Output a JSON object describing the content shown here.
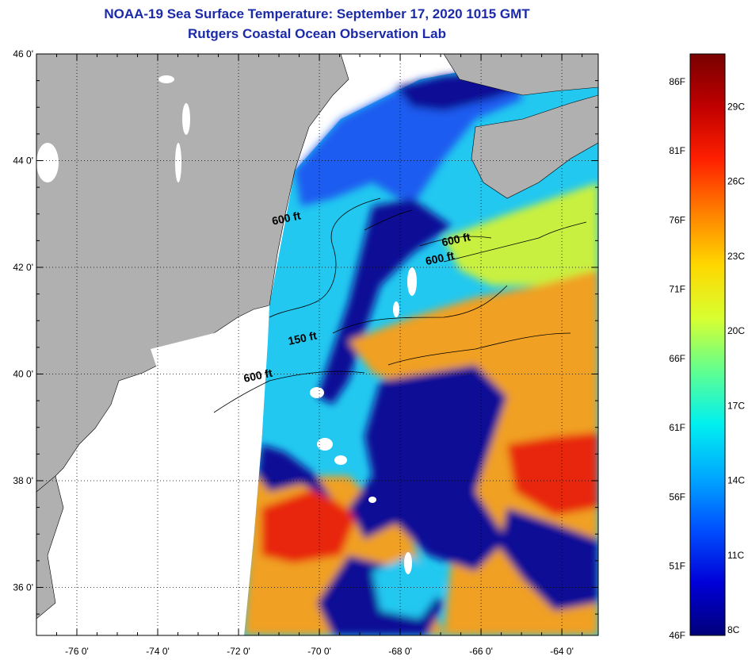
{
  "title": {
    "line1": "NOAA-19 Sea Surface Temperature:  September 17, 2020 1015 GMT",
    "line2": "Rutgers Coastal Ocean Observation Lab"
  },
  "map": {
    "lat_ticks": [
      {
        "value": 46,
        "label": "46 0'"
      },
      {
        "value": 44,
        "label": "44 0'"
      },
      {
        "value": 42,
        "label": "42 0'"
      },
      {
        "value": 40,
        "label": "40 0'"
      },
      {
        "value": 38,
        "label": "38 0'"
      },
      {
        "value": 36,
        "label": "36 0'"
      }
    ],
    "lon_ticks": [
      {
        "value": -76,
        "label": "-76 0'"
      },
      {
        "value": -74,
        "label": "-74 0'"
      },
      {
        "value": -72,
        "label": "-72 0'"
      },
      {
        "value": -70,
        "label": "-70 0'"
      },
      {
        "value": -68,
        "label": "-68 0'"
      },
      {
        "value": -66,
        "label": "-66 0'"
      },
      {
        "value": -64,
        "label": "-64 0'"
      }
    ],
    "lat_range": [
      35.1,
      46.0
    ],
    "lon_range": [
      -77.0,
      -63.1
    ],
    "depth_labels": [
      {
        "text": "600 ft",
        "lon": -70.8,
        "lat": 42.85
      },
      {
        "text": "600 ft",
        "lon": -66.6,
        "lat": 42.45
      },
      {
        "text": "600 ft",
        "lon": -67.0,
        "lat": 42.1
      },
      {
        "text": "150 ft",
        "lon": -70.4,
        "lat": 40.6
      },
      {
        "text": "600 ft",
        "lon": -71.5,
        "lat": 39.9
      }
    ],
    "colors": {
      "land": "#b0b0b0",
      "no_data": "#ffffff",
      "deep_blue": "#0a0a96",
      "blue": "#1e5cf0",
      "cyan": "#22c8f0",
      "green_yellow": "#c8f040",
      "orange": "#f0a020",
      "red": "#e82810"
    }
  },
  "colorbar": {
    "fahrenheit_labels": [
      "86F",
      "81F",
      "76F",
      "71F",
      "66F",
      "61F",
      "56F",
      "51F",
      "46F"
    ],
    "celsius_labels": [
      "29C",
      "26C",
      "23C",
      "20C",
      "17C",
      "14C",
      "11C",
      "8C"
    ],
    "gradient": [
      "#00007a",
      "#0000d8",
      "#0050ff",
      "#00a8ff",
      "#00f0f0",
      "#60ff90",
      "#d8ff30",
      "#ffd800",
      "#ff8000",
      "#ff2000",
      "#c00000",
      "#780000"
    ]
  }
}
